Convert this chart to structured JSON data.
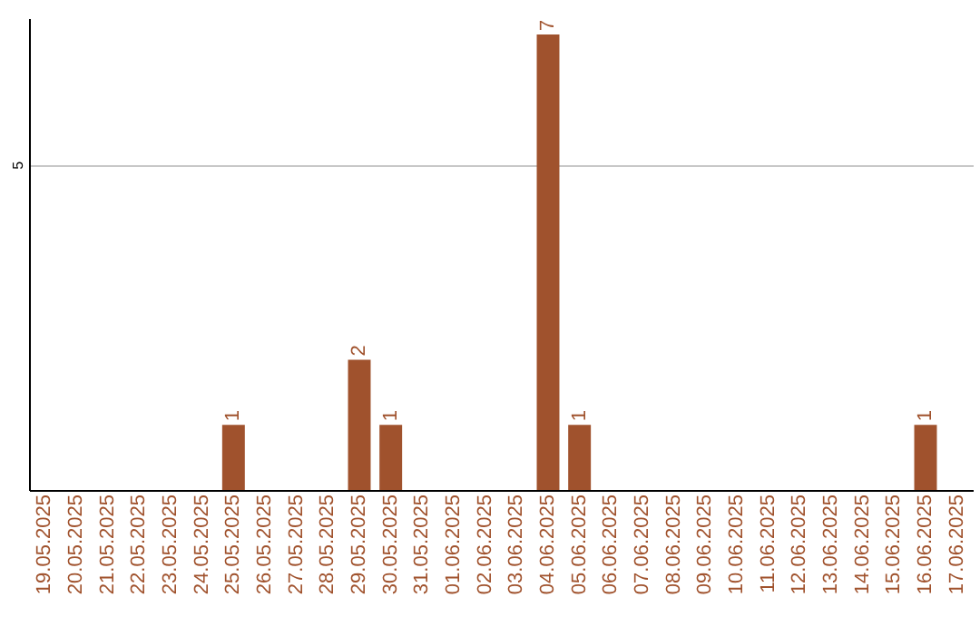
{
  "chart_data": {
    "type": "bar",
    "categories": [
      "19.05.2025",
      "20.05.2025",
      "21.05.2025",
      "22.05.2025",
      "23.05.2025",
      "24.05.2025",
      "25.05.2025",
      "26.05.2025",
      "27.05.2025",
      "28.05.2025",
      "29.05.2025",
      "30.05.2025",
      "31.05.2025",
      "01.06.2025",
      "02.06.2025",
      "03.06.2025",
      "04.06.2025",
      "05.06.2025",
      "06.06.2025",
      "07.06.2025",
      "08.06.2025",
      "09.06.2025",
      "10.06.2025",
      "11.06.2025",
      "12.06.2025",
      "13.06.2025",
      "14.06.2025",
      "15.06.2025",
      "16.06.2025",
      "17.06.2025"
    ],
    "values": [
      0,
      0,
      0,
      0,
      0,
      0,
      1,
      0,
      0,
      0,
      2,
      1,
      0,
      0,
      0,
      0,
      7,
      1,
      0,
      0,
      0,
      0,
      0,
      0,
      0,
      0,
      0,
      0,
      1,
      0
    ],
    "value_labels": [
      null,
      null,
      null,
      null,
      null,
      null,
      "1",
      null,
      null,
      null,
      "2",
      "1",
      null,
      null,
      null,
      null,
      "7",
      "1",
      null,
      null,
      null,
      null,
      null,
      null,
      null,
      null,
      null,
      null,
      "1",
      null
    ],
    "color": "#a0522d",
    "ylim": [
      0,
      7.25
    ],
    "yticks": [
      5
    ],
    "grid": "y"
  }
}
